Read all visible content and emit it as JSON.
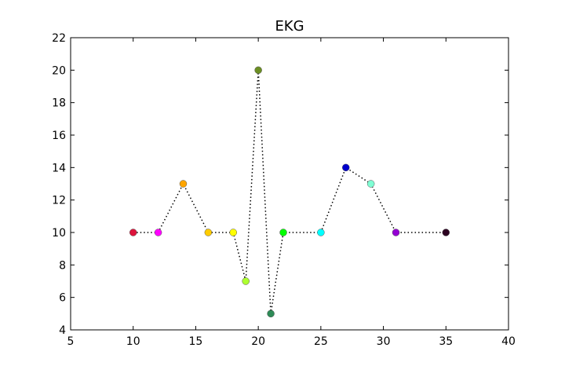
{
  "chart_data": {
    "type": "scatter",
    "title": "EKG",
    "xlabel": "",
    "ylabel": "",
    "xlim": [
      5,
      40
    ],
    "ylim": [
      4,
      22
    ],
    "x_ticks": [
      5,
      10,
      15,
      20,
      25,
      30,
      35,
      40
    ],
    "y_ticks": [
      4,
      6,
      8,
      10,
      12,
      14,
      16,
      18,
      20,
      22
    ],
    "grid": false,
    "legend": "none",
    "line_style": "dotted",
    "line_color": "#000000",
    "points": [
      {
        "x": 10,
        "y": 10,
        "color": "#dc143c"
      },
      {
        "x": 12,
        "y": 10,
        "color": "#ff00ff"
      },
      {
        "x": 14,
        "y": 13,
        "color": "#ffa500"
      },
      {
        "x": 16,
        "y": 10,
        "color": "#ffcc00"
      },
      {
        "x": 18,
        "y": 10,
        "color": "#ffff00"
      },
      {
        "x": 19,
        "y": 7,
        "color": "#adff2f"
      },
      {
        "x": 20,
        "y": 20,
        "color": "#6b8e23"
      },
      {
        "x": 21,
        "y": 5,
        "color": "#2e8b57"
      },
      {
        "x": 22,
        "y": 10,
        "color": "#00ff00"
      },
      {
        "x": 25,
        "y": 10,
        "color": "#00ffff"
      },
      {
        "x": 27,
        "y": 14,
        "color": "#0000cd"
      },
      {
        "x": 29,
        "y": 13,
        "color": "#7fffd4"
      },
      {
        "x": 31,
        "y": 10,
        "color": "#9400d3"
      },
      {
        "x": 35,
        "y": 10,
        "color": "#2b0020"
      }
    ]
  }
}
